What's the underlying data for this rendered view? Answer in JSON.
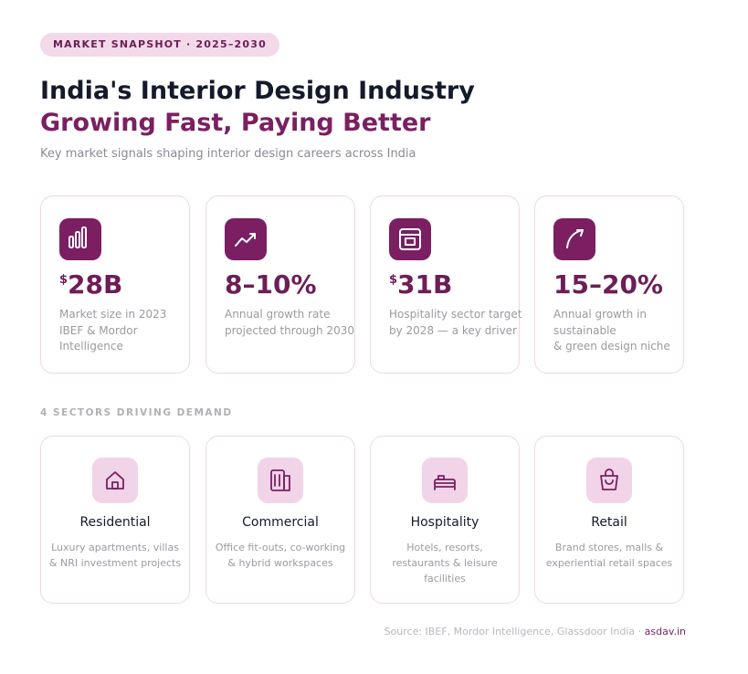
{
  "header": {
    "badge": "MARKET SNAPSHOT · 2025–2030",
    "title": "India's Interior Design Industry",
    "title_accent": "Growing Fast, Paying Better",
    "subtitle": "Key market signals shaping interior design careers across India"
  },
  "stats": [
    {
      "prefix": "$",
      "value": "28B",
      "lines": [
        "Market size in 2023",
        "IBEF & Mordor",
        "Intelligence"
      ]
    },
    {
      "prefix": null,
      "value": "8–10%",
      "lines": [
        "Annual growth rate",
        "projected through 2030"
      ]
    },
    {
      "prefix": "$",
      "value": "31B",
      "lines": [
        "Hospitality sector target",
        "by 2028 — a key driver"
      ]
    },
    {
      "prefix": null,
      "value": "15–20%",
      "lines": [
        "Annual growth in",
        "sustainable",
        "& green design niche"
      ]
    }
  ],
  "sectors_label": "4 SECTORS DRIVING DEMAND",
  "sectors": [
    {
      "name": "Residential",
      "lines": [
        "Luxury apartments, villas",
        "& NRI investment projects"
      ]
    },
    {
      "name": "Commercial",
      "lines": [
        "Office fit-outs, co-working",
        "& hybrid workspaces"
      ]
    },
    {
      "name": "Hospitality",
      "lines": [
        "Hotels, resorts,",
        "restaurants & leisure",
        "facilities"
      ]
    },
    {
      "name": "Retail",
      "lines": [
        "Brand stores, malls &",
        "experiential retail spaces"
      ]
    }
  ],
  "footer": {
    "source": "Source: IBEF, Mordor Intelligence, Glassdoor India ·",
    "site": "asdav.in"
  }
}
